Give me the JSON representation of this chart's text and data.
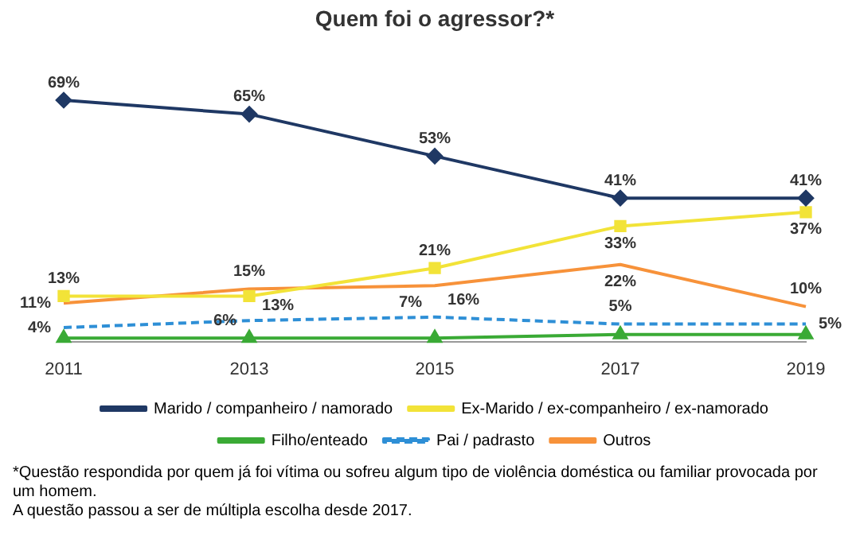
{
  "chart_data": {
    "type": "line",
    "title": "Quem foi o agressor?*",
    "categories": [
      "2011",
      "2013",
      "2015",
      "2017",
      "2019"
    ],
    "series": [
      {
        "name": "Marido / companheiro / namorado",
        "color": "#1f3864",
        "marker": "diamond",
        "values": [
          69,
          65,
          53,
          41,
          41
        ],
        "value_labels": [
          "69%",
          "65%",
          "53%",
          "41%",
          "41%"
        ]
      },
      {
        "name": "Ex-Marido / ex-companheiro / ex-namorado",
        "color": "#f2e338",
        "marker": "square",
        "values": [
          13,
          13,
          21,
          33,
          37
        ],
        "value_labels": [
          "13%",
          "13%",
          "21%",
          "33%",
          "37%"
        ]
      },
      {
        "name": "Filho/enteado",
        "color": "#3aaa35",
        "marker": "triangle",
        "values": [
          1,
          1,
          1,
          2,
          2
        ],
        "value_labels": [
          null,
          null,
          null,
          null,
          null
        ]
      },
      {
        "name": "Pai / padrasto",
        "color": "#2e8fd6",
        "marker": "none",
        "line_style": "dashed",
        "values": [
          4,
          6,
          7,
          5,
          5
        ],
        "value_labels": [
          "4%",
          "6%",
          "7%",
          "5%",
          "5%"
        ]
      },
      {
        "name": "Outros",
        "color": "#f7923a",
        "marker": "none",
        "values": [
          11,
          15,
          16,
          22,
          10
        ],
        "value_labels": [
          "11%",
          "15%",
          "16%",
          "22%",
          "10%"
        ]
      }
    ],
    "tick_labels": "x",
    "grid": false,
    "legend": "bottom",
    "annotations": [
      "*Questão respondida por quem já foi vítima ou sofreu algum tipo de violência doméstica ou familiar provocada por um homem.",
      "A questão passou a ser de múltipla escolha desde 2017."
    ]
  }
}
